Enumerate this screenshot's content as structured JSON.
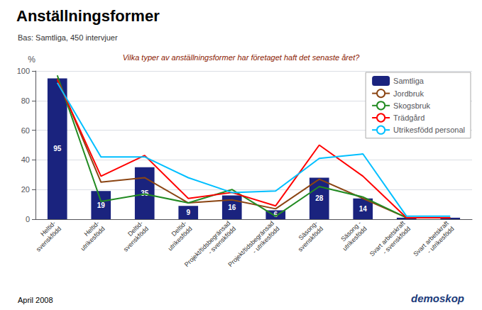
{
  "chart_data": {
    "type": "bar",
    "title": "Anställningsformer",
    "subtitle": "Bas: Samtliga, 450 intervjuer",
    "annotations": [
      "Vilka typer av anställningsformer har företaget haft det senaste året?",
      "April 2008",
      "demoskop"
    ],
    "y_label": "%",
    "categories": [
      "Heltid-\nsvenskfödd",
      "Heltid-\nutrikesfödd",
      "Deltid-\nsvenskfödd",
      "Deltid-\nutrikesfödd",
      "Projekt/tidsbegränsad\n- svenskfödd",
      "Projekt/tidsbegränsad\n- utrikesfödd",
      "Säsong-\nsvenskfödd",
      "Säsong -\nutrikesfödd",
      "Svart arbetskraft\n- svenskfödd",
      "Svart arbetskraft\n- utrikesfödd"
    ],
    "series": [
      {
        "name": "Samtliga",
        "type": "bar",
        "color": "#1a237e",
        "data_labels": true,
        "values": [
          95,
          19,
          35,
          9,
          16,
          6,
          28,
          14,
          1,
          1
        ],
        "value_labels": [
          "95",
          "19",
          "35",
          "9",
          "16",
          "6",
          "28",
          "14",
          null,
          null
        ]
      },
      {
        "name": "Jordbruk",
        "type": "line",
        "color": "#8B4513",
        "values": [
          95,
          25,
          28,
          11,
          13,
          7,
          27,
          14,
          1,
          1
        ]
      },
      {
        "name": "Skogsbruk",
        "type": "line",
        "color": "#228B22",
        "values": [
          97,
          12,
          17,
          11,
          20,
          2,
          22,
          15,
          1,
          1
        ]
      },
      {
        "name": "Trädgård",
        "type": "line",
        "color": "#FF0000",
        "values": [
          94,
          29,
          43,
          14,
          18,
          9,
          50,
          29,
          1,
          1
        ]
      },
      {
        "name": "Utrikesfödd personal",
        "type": "line",
        "color": "#00BFFF",
        "values": [
          92,
          42,
          42,
          28,
          18,
          19,
          41,
          44,
          2,
          2
        ]
      }
    ],
    "ylim": [
      0,
      100
    ],
    "yticks": [
      0,
      20,
      40,
      60,
      80,
      100
    ],
    "grid": true,
    "legend": "upper right"
  }
}
